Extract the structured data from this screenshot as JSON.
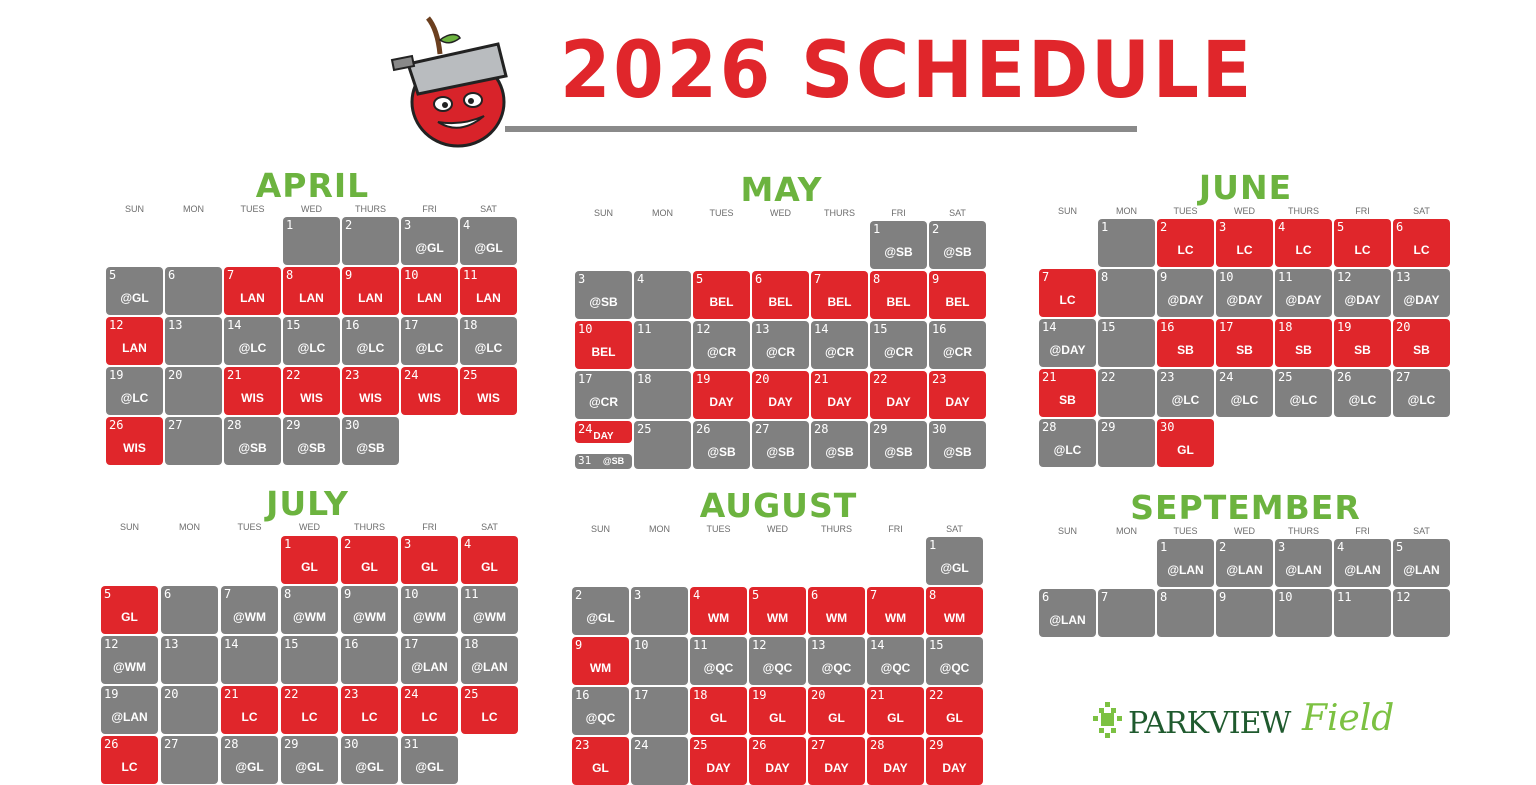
{
  "header": {
    "title": "2026 SCHEDULE"
  },
  "logos": {
    "sponsor": "PARKVIEW",
    "sponsor_script": "Field"
  },
  "colors": {
    "home": "#e0262b",
    "away": "#808080",
    "month_title": "#6cb33f"
  },
  "weekdays": [
    "SUN",
    "MON",
    "TUES",
    "WED",
    "THURS",
    "FRI",
    "SAT"
  ],
  "months": [
    {
      "name": "APRIL",
      "start_weekday": 3,
      "days": [
        {
          "d": "1",
          "opp": "",
          "home": false
        },
        {
          "d": "2",
          "opp": "",
          "home": false
        },
        {
          "d": "3",
          "opp": "@GL",
          "home": false
        },
        {
          "d": "4",
          "opp": "@GL",
          "home": false
        },
        {
          "d": "5",
          "opp": "@GL",
          "home": false
        },
        {
          "d": "6",
          "opp": "",
          "home": false
        },
        {
          "d": "7",
          "opp": "LAN",
          "home": true
        },
        {
          "d": "8",
          "opp": "LAN",
          "home": true
        },
        {
          "d": "9",
          "opp": "LAN",
          "home": true
        },
        {
          "d": "10",
          "opp": "LAN",
          "home": true
        },
        {
          "d": "11",
          "opp": "LAN",
          "home": true
        },
        {
          "d": "12",
          "opp": "LAN",
          "home": true
        },
        {
          "d": "13",
          "opp": "",
          "home": false
        },
        {
          "d": "14",
          "opp": "@LC",
          "home": false
        },
        {
          "d": "15",
          "opp": "@LC",
          "home": false
        },
        {
          "d": "16",
          "opp": "@LC",
          "home": false
        },
        {
          "d": "17",
          "opp": "@LC",
          "home": false
        },
        {
          "d": "18",
          "opp": "@LC",
          "home": false
        },
        {
          "d": "19",
          "opp": "@LC",
          "home": false
        },
        {
          "d": "20",
          "opp": "",
          "home": false
        },
        {
          "d": "21",
          "opp": "WIS",
          "home": true
        },
        {
          "d": "22",
          "opp": "WIS",
          "home": true
        },
        {
          "d": "23",
          "opp": "WIS",
          "home": true
        },
        {
          "d": "24",
          "opp": "WIS",
          "home": true
        },
        {
          "d": "25",
          "opp": "WIS",
          "home": true
        },
        {
          "d": "26",
          "opp": "WIS",
          "home": true
        },
        {
          "d": "27",
          "opp": "",
          "home": false
        },
        {
          "d": "28",
          "opp": "@SB",
          "home": false
        },
        {
          "d": "29",
          "opp": "@SB",
          "home": false
        },
        {
          "d": "30",
          "opp": "@SB",
          "home": false
        }
      ]
    },
    {
      "name": "MAY",
      "start_weekday": 5,
      "days": [
        {
          "d": "1",
          "opp": "@SB",
          "home": false
        },
        {
          "d": "2",
          "opp": "@SB",
          "home": false
        },
        {
          "d": "3",
          "opp": "@SB",
          "home": false
        },
        {
          "d": "4",
          "opp": "",
          "home": false
        },
        {
          "d": "5",
          "opp": "BEL",
          "home": true
        },
        {
          "d": "6",
          "opp": "BEL",
          "home": true
        },
        {
          "d": "7",
          "opp": "BEL",
          "home": true
        },
        {
          "d": "8",
          "opp": "BEL",
          "home": true
        },
        {
          "d": "9",
          "opp": "BEL",
          "home": true
        },
        {
          "d": "10",
          "opp": "BEL",
          "home": true
        },
        {
          "d": "11",
          "opp": "",
          "home": false
        },
        {
          "d": "12",
          "opp": "@CR",
          "home": false
        },
        {
          "d": "13",
          "opp": "@CR",
          "home": false
        },
        {
          "d": "14",
          "opp": "@CR",
          "home": false
        },
        {
          "d": "15",
          "opp": "@CR",
          "home": false
        },
        {
          "d": "16",
          "opp": "@CR",
          "home": false
        },
        {
          "d": "17",
          "opp": "@CR",
          "home": false
        },
        {
          "d": "18",
          "opp": "",
          "home": false
        },
        {
          "d": "19",
          "opp": "DAY",
          "home": true
        },
        {
          "d": "20",
          "opp": "DAY",
          "home": true
        },
        {
          "d": "21",
          "opp": "DAY",
          "home": true
        },
        {
          "d": "22",
          "opp": "DAY",
          "home": true
        },
        {
          "d": "23",
          "opp": "DAY",
          "home": true
        },
        {
          "d": "24",
          "opp": "DAY",
          "home": true
        },
        {
          "d": "25",
          "opp": "",
          "home": false
        },
        {
          "d": "26",
          "opp": "@SB",
          "home": false
        },
        {
          "d": "27",
          "opp": "@SB",
          "home": false
        },
        {
          "d": "28",
          "opp": "@SB",
          "home": false
        },
        {
          "d": "29",
          "opp": "@SB",
          "home": false
        },
        {
          "d": "30",
          "opp": "@SB",
          "home": false
        },
        {
          "d": "31",
          "opp": "@SB",
          "home": false
        }
      ]
    },
    {
      "name": "JUNE",
      "start_weekday": 1,
      "days": [
        {
          "d": "1",
          "opp": "",
          "home": false
        },
        {
          "d": "2",
          "opp": "LC",
          "home": true
        },
        {
          "d": "3",
          "opp": "LC",
          "home": true
        },
        {
          "d": "4",
          "opp": "LC",
          "home": true
        },
        {
          "d": "5",
          "opp": "LC",
          "home": true
        },
        {
          "d": "6",
          "opp": "LC",
          "home": true
        },
        {
          "d": "7",
          "opp": "LC",
          "home": true
        },
        {
          "d": "8",
          "opp": "",
          "home": false
        },
        {
          "d": "9",
          "opp": "@DAY",
          "home": false
        },
        {
          "d": "10",
          "opp": "@DAY",
          "home": false
        },
        {
          "d": "11",
          "opp": "@DAY",
          "home": false
        },
        {
          "d": "12",
          "opp": "@DAY",
          "home": false
        },
        {
          "d": "13",
          "opp": "@DAY",
          "home": false
        },
        {
          "d": "14",
          "opp": "@DAY",
          "home": false
        },
        {
          "d": "15",
          "opp": "",
          "home": false
        },
        {
          "d": "16",
          "opp": "SB",
          "home": true
        },
        {
          "d": "17",
          "opp": "SB",
          "home": true
        },
        {
          "d": "18",
          "opp": "SB",
          "home": true
        },
        {
          "d": "19",
          "opp": "SB",
          "home": true
        },
        {
          "d": "20",
          "opp": "SB",
          "home": true
        },
        {
          "d": "21",
          "opp": "SB",
          "home": true
        },
        {
          "d": "22",
          "opp": "",
          "home": false
        },
        {
          "d": "23",
          "opp": "@LC",
          "home": false
        },
        {
          "d": "24",
          "opp": "@LC",
          "home": false
        },
        {
          "d": "25",
          "opp": "@LC",
          "home": false
        },
        {
          "d": "26",
          "opp": "@LC",
          "home": false
        },
        {
          "d": "27",
          "opp": "@LC",
          "home": false
        },
        {
          "d": "28",
          "opp": "@LC",
          "home": false
        },
        {
          "d": "29",
          "opp": "",
          "home": false
        },
        {
          "d": "30",
          "opp": "GL",
          "home": true
        }
      ]
    },
    {
      "name": "JULY",
      "start_weekday": 3,
      "days": [
        {
          "d": "1",
          "opp": "GL",
          "home": true
        },
        {
          "d": "2",
          "opp": "GL",
          "home": true
        },
        {
          "d": "3",
          "opp": "GL",
          "home": true
        },
        {
          "d": "4",
          "opp": "GL",
          "home": true
        },
        {
          "d": "5",
          "opp": "GL",
          "home": true
        },
        {
          "d": "6",
          "opp": "",
          "home": false
        },
        {
          "d": "7",
          "opp": "@WM",
          "home": false
        },
        {
          "d": "8",
          "opp": "@WM",
          "home": false
        },
        {
          "d": "9",
          "opp": "@WM",
          "home": false
        },
        {
          "d": "10",
          "opp": "@WM",
          "home": false
        },
        {
          "d": "11",
          "opp": "@WM",
          "home": false
        },
        {
          "d": "12",
          "opp": "@WM",
          "home": false
        },
        {
          "d": "13",
          "opp": "",
          "home": false
        },
        {
          "d": "14",
          "opp": "",
          "home": false
        },
        {
          "d": "15",
          "opp": "",
          "home": false
        },
        {
          "d": "16",
          "opp": "",
          "home": false
        },
        {
          "d": "17",
          "opp": "@LAN",
          "home": false
        },
        {
          "d": "18",
          "opp": "@LAN",
          "home": false
        },
        {
          "d": "19",
          "opp": "@LAN",
          "home": false
        },
        {
          "d": "20",
          "opp": "",
          "home": false
        },
        {
          "d": "21",
          "opp": "LC",
          "home": true
        },
        {
          "d": "22",
          "opp": "LC",
          "home": true
        },
        {
          "d": "23",
          "opp": "LC",
          "home": true
        },
        {
          "d": "24",
          "opp": "LC",
          "home": true
        },
        {
          "d": "25",
          "opp": "LC",
          "home": true
        },
        {
          "d": "26",
          "opp": "LC",
          "home": true
        },
        {
          "d": "27",
          "opp": "",
          "home": false
        },
        {
          "d": "28",
          "opp": "@GL",
          "home": false
        },
        {
          "d": "29",
          "opp": "@GL",
          "home": false
        },
        {
          "d": "30",
          "opp": "@GL",
          "home": false
        },
        {
          "d": "31",
          "opp": "@GL",
          "home": false
        }
      ]
    },
    {
      "name": "AUGUST",
      "start_weekday": 6,
      "days": [
        {
          "d": "1",
          "opp": "@GL",
          "home": false
        },
        {
          "d": "2",
          "opp": "@GL",
          "home": false
        },
        {
          "d": "3",
          "opp": "",
          "home": false
        },
        {
          "d": "4",
          "opp": "WM",
          "home": true
        },
        {
          "d": "5",
          "opp": "WM",
          "home": true
        },
        {
          "d": "6",
          "opp": "WM",
          "home": true
        },
        {
          "d": "7",
          "opp": "WM",
          "home": true
        },
        {
          "d": "8",
          "opp": "WM",
          "home": true
        },
        {
          "d": "9",
          "opp": "WM",
          "home": true
        },
        {
          "d": "10",
          "opp": "",
          "home": false
        },
        {
          "d": "11",
          "opp": "@QC",
          "home": false
        },
        {
          "d": "12",
          "opp": "@QC",
          "home": false
        },
        {
          "d": "13",
          "opp": "@QC",
          "home": false
        },
        {
          "d": "14",
          "opp": "@QC",
          "home": false
        },
        {
          "d": "15",
          "opp": "@QC",
          "home": false
        },
        {
          "d": "16",
          "opp": "@QC",
          "home": false
        },
        {
          "d": "17",
          "opp": "",
          "home": false
        },
        {
          "d": "18",
          "opp": "GL",
          "home": true
        },
        {
          "d": "19",
          "opp": "GL",
          "home": true
        },
        {
          "d": "20",
          "opp": "GL",
          "home": true
        },
        {
          "d": "21",
          "opp": "GL",
          "home": true
        },
        {
          "d": "22",
          "opp": "GL",
          "home": true
        },
        {
          "d": "23",
          "opp": "GL",
          "home": true
        },
        {
          "d": "24",
          "opp": "",
          "home": false
        },
        {
          "d": "25",
          "opp": "DAY",
          "home": true
        },
        {
          "d": "26",
          "opp": "DAY",
          "home": true
        },
        {
          "d": "27",
          "opp": "DAY",
          "home": true
        },
        {
          "d": "28",
          "opp": "DAY",
          "home": true
        },
        {
          "d": "29",
          "opp": "DAY",
          "home": true
        }
      ]
    },
    {
      "name": "SEPTEMBER",
      "start_weekday": 2,
      "days": [
        {
          "d": "1",
          "opp": "@LAN",
          "home": false
        },
        {
          "d": "2",
          "opp": "@LAN",
          "home": false
        },
        {
          "d": "3",
          "opp": "@LAN",
          "home": false
        },
        {
          "d": "4",
          "opp": "@LAN",
          "home": false
        },
        {
          "d": "5",
          "opp": "@LAN",
          "home": false
        },
        {
          "d": "6",
          "opp": "@LAN",
          "home": false
        },
        {
          "d": "7",
          "opp": "",
          "home": false
        },
        {
          "d": "8",
          "opp": "",
          "home": false
        },
        {
          "d": "9",
          "opp": "",
          "home": false
        },
        {
          "d": "10",
          "opp": "",
          "home": false
        },
        {
          "d": "11",
          "opp": "",
          "home": false
        },
        {
          "d": "12",
          "opp": "",
          "home": false
        }
      ]
    }
  ]
}
